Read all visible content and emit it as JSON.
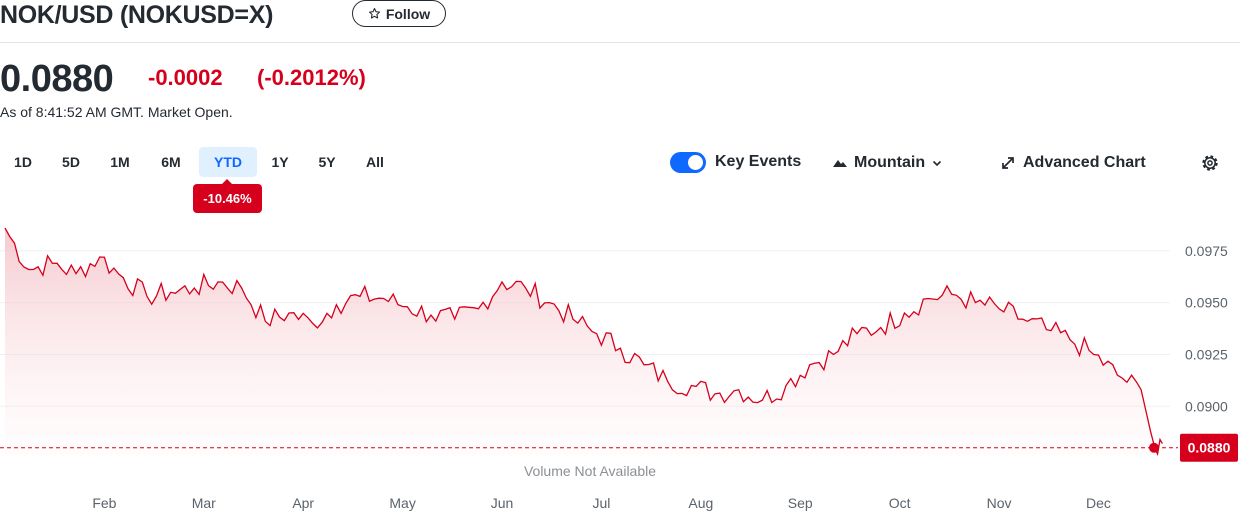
{
  "header": {
    "title": "NOK/USD (NOKUSD=X)",
    "follow_label": "Follow",
    "follow_icon": "star-outline-icon"
  },
  "quote": {
    "price": "0.0880",
    "change": "-0.0002",
    "change_percent": "(-0.2012%)",
    "as_of": "As of 8:41:52 AM GMT. Market Open.",
    "down_color": "#d6001c"
  },
  "toolbar": {
    "ranges": [
      {
        "label": "1D",
        "active": false
      },
      {
        "label": "5D",
        "active": false
      },
      {
        "label": "1M",
        "active": false
      },
      {
        "label": "6M",
        "active": false
      },
      {
        "label": "YTD",
        "active": true
      },
      {
        "label": "1Y",
        "active": false
      },
      {
        "label": "5Y",
        "active": false
      },
      {
        "label": "All",
        "active": false
      }
    ],
    "range_change_badge": "-10.46%",
    "key_events_label": "Key Events",
    "key_events_on": true,
    "chart_type_label": "Mountain",
    "chart_type_icon": "mountain-icon",
    "advanced_label": "Advanced Chart",
    "advanced_icon": "expand-arrows-icon",
    "settings_icon": "gear-icon",
    "accent_color": "#0f69ff"
  },
  "chart_data": {
    "type": "area",
    "title": "",
    "xlabel": "",
    "ylabel": "",
    "x_tick_labels": [
      "Feb",
      "Mar",
      "Apr",
      "May",
      "Jun",
      "Jul",
      "Aug",
      "Sep",
      "Oct",
      "Nov",
      "Dec"
    ],
    "y_ticks": [
      "0.0975",
      "0.0950",
      "0.0925",
      "0.0900"
    ],
    "ylim": [
      0.08765,
      0.09995
    ],
    "x_range": [
      1,
      245
    ],
    "grid": true,
    "current_value": "0.0880",
    "volume_note": "Volume Not Available",
    "line_color": "#d6001c",
    "series": [
      {
        "points": [
          [
            1,
            0.0986
          ],
          [
            6,
            0.0966
          ],
          [
            11,
            0.0969
          ],
          [
            16,
            0.0964
          ],
          [
            21,
            0.0972
          ],
          [
            26,
            0.0962
          ],
          [
            31,
            0.0953
          ],
          [
            36,
            0.0955
          ],
          [
            41,
            0.0957
          ],
          [
            46,
            0.096
          ],
          [
            51,
            0.0957
          ],
          [
            56,
            0.0941
          ],
          [
            61,
            0.0945
          ],
          [
            66,
            0.094
          ],
          [
            71,
            0.0949
          ],
          [
            76,
            0.0953
          ],
          [
            81,
            0.0952
          ],
          [
            86,
            0.0948
          ],
          [
            91,
            0.0944
          ],
          [
            96,
            0.0942
          ],
          [
            101,
            0.0947
          ],
          [
            106,
            0.096
          ],
          [
            111,
            0.0957
          ],
          [
            116,
            0.095
          ],
          [
            121,
            0.0942
          ],
          [
            126,
            0.0935
          ],
          [
            131,
            0.0928
          ],
          [
            136,
            0.092
          ],
          [
            141,
            0.0912
          ],
          [
            146,
            0.091
          ],
          [
            151,
            0.0906
          ],
          [
            156,
            0.0908
          ],
          [
            161,
            0.0903
          ],
          [
            166,
            0.091
          ],
          [
            171,
            0.092
          ],
          [
            176,
            0.0925
          ],
          [
            181,
            0.0935
          ],
          [
            186,
            0.0938
          ],
          [
            191,
            0.0945
          ],
          [
            196,
            0.0952
          ],
          [
            201,
            0.0954
          ],
          [
            206,
            0.095
          ],
          [
            211,
            0.0947
          ],
          [
            216,
            0.0942
          ],
          [
            221,
            0.0937
          ],
          [
            226,
            0.0932
          ],
          [
            231,
            0.0925
          ],
          [
            236,
            0.0915
          ],
          [
            241,
            0.0908
          ]
        ]
      }
    ]
  }
}
